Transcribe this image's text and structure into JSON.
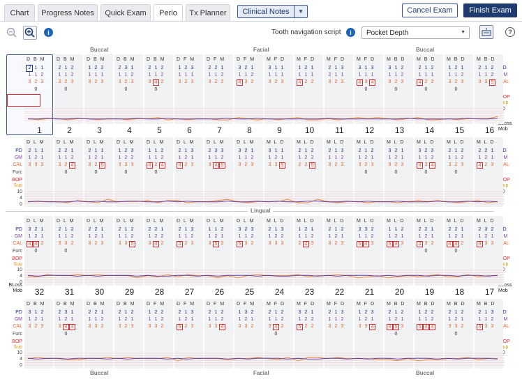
{
  "tabs": [
    {
      "label": "Chart"
    },
    {
      "label": "Progress Notes"
    },
    {
      "label": "Quick Exam"
    },
    {
      "label": "Perio"
    },
    {
      "label": "Tx Planner"
    }
  ],
  "clinical_notes": {
    "label": "Clinical Notes"
  },
  "actions": {
    "cancel": "Cancel Exam",
    "finish": "Finish Exam"
  },
  "toolbar": {
    "nav_label": "Tooth navigation script",
    "nav_value": "Pocket Depth"
  },
  "sections": {
    "top_buccal": "Buccal",
    "top_facial": "Facial",
    "top_buccal2": "Buccal",
    "lingual": "Lingual",
    "bot_buccal": "Buccal",
    "bot_facial": "Facial",
    "bot_buccal2": "Buccal"
  },
  "labels": {
    "pd": "PD",
    "gm": "GM",
    "cal": "CAL",
    "furc": "Furc",
    "bop": "BOP",
    "sup": "Sup",
    "bloss": "BLoss",
    "mob": "Mob",
    "s10": "10",
    "s4": "4",
    "s0": "0"
  },
  "colors": {
    "pd": "#1a2a8c",
    "gm": "#7a3aa0",
    "cal": "#e6602a",
    "bop": "#d9282f",
    "sup": "#e69a1c",
    "gm_line": "#5b3fa5",
    "cal_line": "#f08c3c"
  },
  "upper_numbers": [
    "1",
    "2",
    "3",
    "4",
    "5",
    "6",
    "7",
    "8",
    "9",
    "10",
    "11",
    "12",
    "13",
    "14",
    "15",
    "16"
  ],
  "lower_numbers": [
    "32",
    "31",
    "30",
    "29",
    "28",
    "27",
    "26",
    "25",
    "24",
    "23",
    "22",
    "21",
    "20",
    "19",
    "18",
    "17"
  ],
  "rows": [
    {
      "id": "upper-facial",
      "heads": [
        "D B M",
        "D B M",
        "D B M",
        "D B M",
        "D B M",
        "D F M",
        "D F M",
        "D F M",
        "M F D",
        "M F D",
        "M F D",
        "M F D",
        "M B D",
        "M B D",
        "M B D",
        "M B D"
      ],
      "pd": [
        "2 1 1",
        "2 1 2",
        "1 2 2",
        "2 3 1",
        "2 1 2",
        "1 2 3",
        "2 2 1",
        "3 2 1",
        "3 1 1",
        "1 2 1",
        "2 1 3",
        "3 1 3",
        "3 1 2",
        "2 1 2",
        "1 2 1",
        "2 1 2"
      ],
      "gm": [
        "1 1 2",
        "1 1 2",
        "1 1 1",
        "1 1 2",
        "1 1 2",
        "1 1 1",
        "1 1 2",
        "1 1 2",
        "1 1 1",
        "1 1 1",
        "2 1 1",
        "1 1 1",
        "1 1 2",
        "1 1 1",
        "1 1 2",
        "1 1 2"
      ],
      "cal": [
        "3 2 3",
        "3 2 3",
        "3 2 3",
        "3 2 3",
        "3 4 2",
        "3 2 3",
        "3 2 2",
        "4 3 2",
        "3 2 3",
        "4 2 2",
        "3 2 3",
        "4 3 4",
        "3 2 3",
        "4 2 2",
        "3 2 3",
        "3 3 5"
      ],
      "furc": [
        "0",
        "0",
        "",
        "0",
        "0",
        "",
        "",
        "",
        "",
        "",
        "",
        "0",
        "0",
        "0",
        "0",
        ""
      ],
      "sel": [
        0,
        0,
        0,
        0,
        0,
        0,
        0,
        0,
        0,
        0,
        0,
        0,
        0,
        0,
        0,
        0
      ]
    },
    {
      "id": "upper-lingual",
      "heads": [
        "D L M",
        "D L M",
        "D L M",
        "D L M",
        "D L M",
        "D L M",
        "D L M",
        "D L M",
        "M L D",
        "M L D",
        "M L D",
        "M L D",
        "M L D",
        "M L D",
        "M L D",
        "M L D"
      ],
      "pd": [
        "2 1 1",
        "2 2 1",
        "2 1 1",
        "1 2 3",
        "1 1 2",
        "2 1 3",
        "2 3 3",
        "3 2 1",
        "3 1 1",
        "2 1 2",
        "2 1 3",
        "2 1 2",
        "3 2 1",
        "3 2 3",
        "2 1 2",
        "2 2 1"
      ],
      "gm": [
        "1 2 1",
        "1 1 2",
        "1 2 1",
        "1 2 2",
        "1 1 2",
        "1 2 1",
        "1 1 2",
        "1 1 2",
        "1 2 1",
        "1 2 2",
        "1 1 2",
        "1 2 1",
        "1 2 1",
        "1 1 2",
        "1 1 2",
        "1 2 1"
      ],
      "cal": [
        "3 3 3",
        "3 2 4",
        "3 2 5",
        "3 3 3",
        "4 2 4",
        "4 2 3",
        "3 4 5",
        "3 2 3",
        "3 3 5",
        "2 2 5",
        "3 2 3",
        "3 2 3",
        "3 2 3",
        "4 3 4",
        "3 2 3",
        "4 2 3"
      ],
      "furc": [
        "",
        "0",
        "0",
        "0",
        "0",
        "",
        "",
        "",
        "",
        "",
        "",
        "0",
        "0",
        "0",
        "0",
        ""
      ],
      "sel": [
        0,
        0,
        0,
        0,
        0,
        0,
        0,
        0,
        0,
        0,
        0,
        0,
        0,
        0,
        0,
        0
      ]
    },
    {
      "id": "lower-lingual",
      "heads": [
        "D L M",
        "D L M",
        "D L M",
        "D L M",
        "D L M",
        "D L M",
        "D L M",
        "D L M",
        "M L D",
        "M L D",
        "M L D",
        "M L D",
        "M L D",
        "M L D",
        "M L D",
        "M L D"
      ],
      "pd": [
        "3 2 1",
        "2 1 2",
        "2 2 1",
        "2 1 2",
        "2 2 1",
        "2 1 3",
        "1 1 2",
        "3 2 3",
        "2 1 3",
        "1 2 1",
        "2 1 2",
        "3 3 2",
        "1 1 2",
        "2 2 1",
        "2 2 1",
        "2 3 2"
      ],
      "gm": [
        "1 2 1",
        "1 1 2",
        "1 2 1",
        "1 1 2",
        "1 2 2",
        "1 1 2",
        "1 2 1",
        "1 1 2",
        "1 2 2",
        "1 1 2",
        "1 2 1",
        "1 1 2",
        "1 2 1",
        "1 2 1",
        "1 2 1",
        "1 2 1"
      ],
      "cal": [
        "4 4 2",
        "3 3 2",
        "3 2 3",
        "3 3 5",
        "3 4 2",
        "4 2 3",
        "3 5 3",
        "5 3 2",
        "3 3 3",
        "2 4 3",
        "3 2 3",
        "5 4 3",
        "5 4 3",
        "4 3 2",
        "4 4 2",
        "4 3 3"
      ],
      "furc": [
        "0",
        "0",
        "",
        "",
        "",
        "",
        "",
        "",
        "",
        "",
        "",
        "",
        "",
        "0",
        "0",
        ""
      ],
      "sel": [
        0,
        0,
        0,
        0,
        0,
        0,
        0,
        0,
        0,
        0,
        0,
        0,
        0,
        0,
        0,
        0
      ]
    },
    {
      "id": "lower-facial",
      "heads": [
        "D B M",
        "D B M",
        "D B M",
        "D B M",
        "D F M",
        "D F M",
        "D F M",
        "D F M",
        "M F D",
        "M F D",
        "M F D",
        "M F D",
        "M B D",
        "M B D",
        "M B D",
        "M B D"
      ],
      "pd": [
        "3 1 2",
        "2 3 1",
        "2 2 1",
        "2 1 2",
        "1 2 2",
        "2 1 3",
        "2 1 2",
        "1 3 2",
        "2 1 2",
        "3 2 1",
        "2 1 3",
        "1 2 3",
        "2 1 2",
        "1 2 2",
        "2 1 2",
        "2 1 3"
      ],
      "gm": [
        "1 2 1",
        "1 2 1",
        "1 1 2",
        "1 2 1",
        "1 1 2",
        "1 2 1",
        "1 1 2",
        "1 2 1",
        "1 1 2",
        "1 2 2",
        "1 1 2",
        "1 2 1",
        "1 2 1",
        "1 1 2",
        "1 2 1",
        "1 1 2"
      ],
      "cal": [
        "3 2 3",
        "3 4 4",
        "3 3 2",
        "3 2 3",
        "3 3 2",
        "5 2 3",
        "3 3 4",
        "3 3 2",
        "3 4 2",
        "5 2 2",
        "3 2 3",
        "3 3 4",
        "4 5 3",
        "5 4 4",
        "3 3 2",
        "4 3 3"
      ],
      "furc": [
        "",
        "0",
        "",
        "",
        "",
        "",
        "",
        "",
        "0",
        "",
        "",
        "",
        "0",
        "",
        "0",
        ""
      ],
      "sel": [
        0,
        0,
        0,
        0,
        0,
        0,
        0,
        0,
        0,
        0,
        0,
        0,
        0,
        0,
        0,
        0
      ]
    }
  ]
}
